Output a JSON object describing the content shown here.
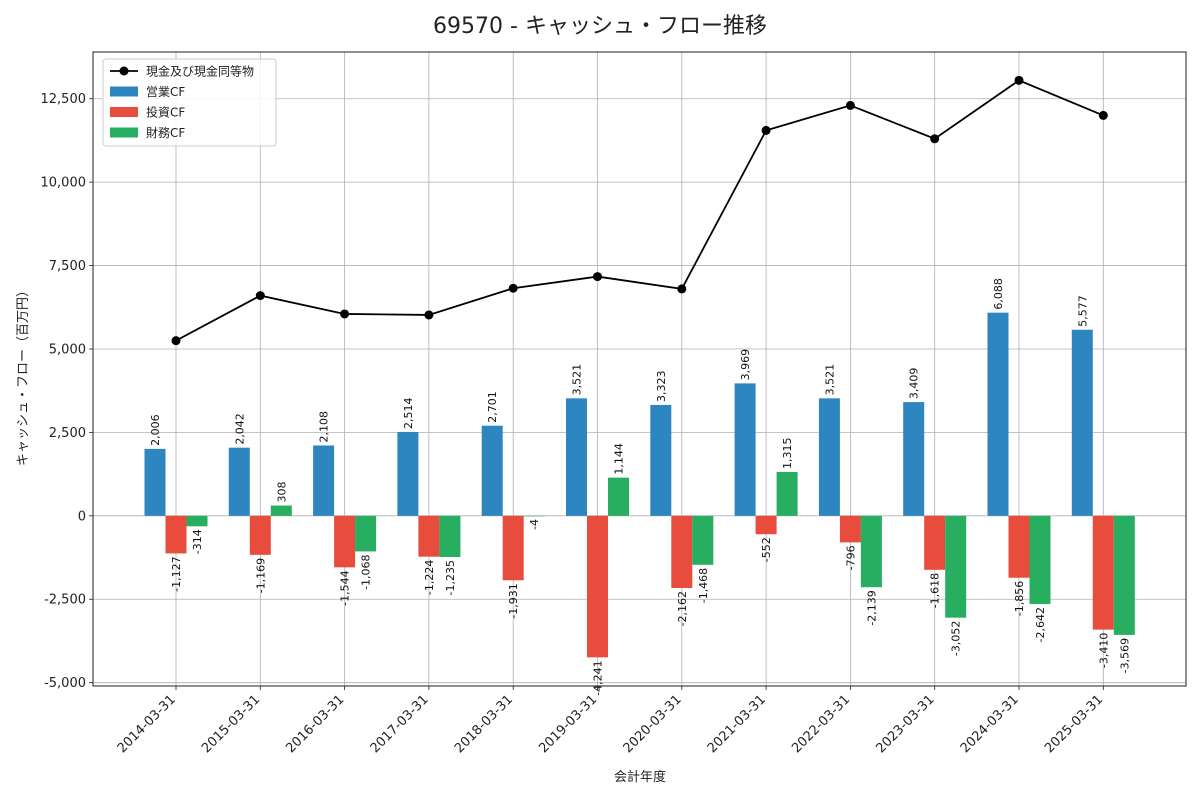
{
  "chart_data": {
    "type": "bar",
    "title": "69570 - キャッシュ・フロー推移",
    "xlabel": "会計年度",
    "ylabel": "キャッシュ・フロー（百万円）",
    "ylim": [
      -5100,
      13900
    ],
    "y_ticks": [
      -5000,
      -2500,
      0,
      2500,
      5000,
      7500,
      10000,
      12500
    ],
    "y_tick_labels": [
      "-5,000",
      "-2,500",
      "0",
      "2,500",
      "5,000",
      "7,500",
      "10,000",
      "12,500"
    ],
    "grid": true,
    "legend_position": "top-left",
    "categories": [
      "2014-03-31",
      "2015-03-31",
      "2016-03-31",
      "2017-03-31",
      "2018-03-31",
      "2019-03-31",
      "2020-03-31",
      "2021-03-31",
      "2022-03-31",
      "2023-03-31",
      "2024-03-31",
      "2025-03-31"
    ],
    "series": [
      {
        "name": "営業CF",
        "kind": "bar",
        "color": "#2e86c1",
        "values": [
          2006,
          2042,
          2108,
          2514,
          2701,
          3521,
          3323,
          3969,
          3521,
          3409,
          6088,
          5577
        ],
        "labels": [
          "2,006",
          "2,042",
          "2,108",
          "2,514",
          "2,701",
          "3,521",
          "3,323",
          "3,969",
          "3,521",
          "3,409",
          "6,088",
          "5,577"
        ]
      },
      {
        "name": "投資CF",
        "kind": "bar",
        "color": "#e74c3c",
        "values": [
          -1127,
          -1169,
          -1544,
          -1224,
          -1931,
          -4241,
          -2162,
          -552,
          -796,
          -1618,
          -1856,
          -3410
        ],
        "labels": [
          "-1,127",
          "-1,169",
          "-1,544",
          "-1,224",
          "-1,931",
          "-4,241",
          "-2,162",
          "-552",
          "-796",
          "-1,618",
          "-1,856",
          "-3,410"
        ]
      },
      {
        "name": "財務CF",
        "kind": "bar",
        "color": "#27ae60",
        "values": [
          -314,
          308,
          -1068,
          -1235,
          -4,
          1144,
          -1468,
          1315,
          -2139,
          -3052,
          -2642,
          -3569
        ],
        "labels": [
          "-314",
          "308",
          "-1,068",
          "-1,235",
          "-4",
          "1,144",
          "-1,468",
          "1,315",
          "-2,139",
          "-3,052",
          "-2,642",
          "-3,569"
        ]
      },
      {
        "name": "現金及び現金同等物",
        "kind": "line",
        "color": "#000000",
        "values": [
          5250,
          6600,
          6050,
          6020,
          6820,
          7170,
          6800,
          11550,
          12300,
          11300,
          13050,
          12000
        ]
      }
    ]
  }
}
